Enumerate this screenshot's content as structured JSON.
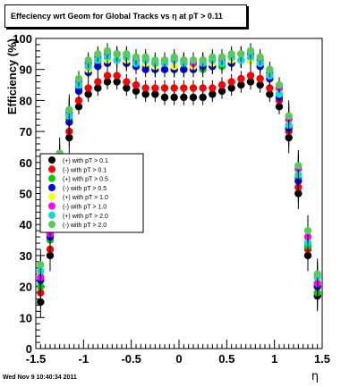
{
  "timestamp": "Wed Nov  9 10:40:34 2011",
  "chart_data": {
    "type": "scatter",
    "title": "Effeciency wrt Geom for Global Tracks vs   η at pT > 0.11",
    "xlabel": "η",
    "ylabel": "Efficiency (%)",
    "xlim": [
      -1.5,
      1.5
    ],
    "ylim": [
      0,
      100
    ],
    "x_ticks": [
      "-1.5",
      "-1",
      "-0.5",
      "0",
      "0.5",
      "1",
      "1.5"
    ],
    "y_ticks": [
      "0",
      "10",
      "20",
      "30",
      "40",
      "50",
      "60",
      "70",
      "80",
      "90",
      "100"
    ],
    "grid": false,
    "legend_position": "left-middle",
    "series": [
      {
        "name": "(+) with pT > 0.1",
        "color": "#000000",
        "x": [
          -1.45,
          -1.35,
          -1.25,
          -1.15,
          -1.05,
          -0.95,
          -0.85,
          -0.75,
          -0.65,
          -0.55,
          -0.45,
          -0.35,
          -0.25,
          -0.15,
          -0.05,
          0.05,
          0.15,
          0.25,
          0.35,
          0.45,
          0.55,
          0.65,
          0.75,
          0.85,
          0.95,
          1.05,
          1.15,
          1.25,
          1.35,
          1.45
        ],
        "y": [
          15,
          30,
          50,
          68,
          78,
          82,
          84,
          86,
          86,
          84,
          83,
          82,
          82,
          81,
          81,
          81,
          81,
          81,
          82,
          83,
          84,
          85,
          86,
          85,
          82,
          78,
          68,
          50,
          30,
          17
        ]
      },
      {
        "name": "(-) with pT > 0.1",
        "color": "#ff0000",
        "x": [
          -1.45,
          -1.35,
          -1.25,
          -1.15,
          -1.05,
          -0.95,
          -0.85,
          -0.75,
          -0.65,
          -0.55,
          -0.45,
          -0.35,
          -0.25,
          -0.15,
          -0.05,
          0.05,
          0.15,
          0.25,
          0.35,
          0.45,
          0.55,
          0.65,
          0.75,
          0.85,
          0.95,
          1.05,
          1.15,
          1.25,
          1.35,
          1.45
        ],
        "y": [
          18,
          32,
          52,
          70,
          80,
          84,
          86,
          88,
          88,
          86,
          85,
          84,
          84,
          84,
          84,
          84,
          84,
          84,
          84,
          85,
          86,
          87,
          88,
          87,
          84,
          80,
          70,
          52,
          32,
          20
        ]
      },
      {
        "name": "(+) with pT > 0.5",
        "color": "#00cc00",
        "x": [
          -1.45,
          -1.35,
          -1.25,
          -1.15,
          -1.05,
          -0.95,
          -0.85,
          -0.75,
          -0.65,
          -0.55,
          -0.45,
          -0.35,
          -0.25,
          -0.15,
          -0.05,
          0.05,
          0.15,
          0.25,
          0.35,
          0.45,
          0.55,
          0.65,
          0.75,
          0.85,
          0.95,
          1.05,
          1.15,
          1.25,
          1.35,
          1.45
        ],
        "y": [
          20,
          35,
          58,
          74,
          84,
          90,
          92,
          93,
          94,
          92,
          91,
          91,
          90,
          90,
          90,
          90,
          90,
          90,
          91,
          91,
          92,
          93,
          94,
          92,
          88,
          82,
          72,
          55,
          33,
          18
        ]
      },
      {
        "name": "(-) with pT > 0.5",
        "color": "#0000ff",
        "x": [
          -1.45,
          -1.35,
          -1.25,
          -1.15,
          -1.05,
          -0.95,
          -0.85,
          -0.75,
          -0.65,
          -0.55,
          -0.45,
          -0.35,
          -0.25,
          -0.15,
          -0.05,
          0.05,
          0.15,
          0.25,
          0.35,
          0.45,
          0.55,
          0.65,
          0.75,
          0.85,
          0.95,
          1.05,
          1.15,
          1.25,
          1.35,
          1.45
        ],
        "y": [
          22,
          36,
          57,
          73,
          83,
          89,
          91,
          92,
          93,
          92,
          91,
          90,
          90,
          90,
          90,
          90,
          90,
          91,
          91,
          92,
          92,
          93,
          93,
          91,
          87,
          81,
          71,
          54,
          34,
          20
        ]
      },
      {
        "name": "(+) with pT > 1.0",
        "color": "#ffff00",
        "x": [
          -1.45,
          -1.35,
          -1.25,
          -1.15,
          -1.05,
          -0.95,
          -0.85,
          -0.75,
          -0.65,
          -0.55,
          -0.45,
          -0.35,
          -0.25,
          -0.15,
          -0.05,
          0.05,
          0.15,
          0.25,
          0.35,
          0.45,
          0.55,
          0.65,
          0.75,
          0.85,
          0.95,
          1.05,
          1.15,
          1.25,
          1.35,
          1.45
        ],
        "y": [
          24,
          38,
          60,
          75,
          85,
          90,
          93,
          93,
          94,
          93,
          92,
          92,
          91,
          92,
          91,
          92,
          91,
          92,
          92,
          92,
          93,
          93,
          93,
          92,
          88,
          83,
          73,
          57,
          35,
          22
        ]
      },
      {
        "name": "(-) with pT > 1.0",
        "color": "#ff00ff",
        "x": [
          -1.45,
          -1.35,
          -1.25,
          -1.15,
          -1.05,
          -0.95,
          -0.85,
          -0.75,
          -0.65,
          -0.55,
          -0.45,
          -0.35,
          -0.25,
          -0.15,
          -0.05,
          0.05,
          0.15,
          0.25,
          0.35,
          0.45,
          0.55,
          0.65,
          0.75,
          0.85,
          0.95,
          1.05,
          1.15,
          1.25,
          1.35,
          1.45
        ],
        "y": [
          23,
          37,
          59,
          76,
          86,
          92,
          94,
          95,
          95,
          94,
          93,
          93,
          92,
          93,
          93,
          93,
          92,
          93,
          93,
          93,
          94,
          95,
          95,
          93,
          89,
          84,
          74,
          58,
          36,
          21
        ]
      },
      {
        "name": "(+) with pT > 2.0",
        "color": "#00e0e0",
        "x": [
          -1.45,
          -1.35,
          -1.25,
          -1.15,
          -1.05,
          -0.95,
          -0.85,
          -0.75,
          -0.65,
          -0.55,
          -0.45,
          -0.35,
          -0.25,
          -0.15,
          -0.05,
          0.05,
          0.15,
          0.25,
          0.35,
          0.45,
          0.55,
          0.65,
          0.75,
          0.85,
          0.95,
          1.05,
          1.15,
          1.25,
          1.35,
          1.45
        ],
        "y": [
          25,
          40,
          61,
          75,
          85,
          91,
          93,
          94,
          93,
          94,
          92,
          93,
          92,
          92,
          93,
          92,
          93,
          92,
          93,
          92,
          94,
          93,
          94,
          92,
          88,
          82,
          72,
          56,
          34,
          23
        ]
      },
      {
        "name": "(-) with pT > 2.0",
        "color": "#55cc55",
        "x": [
          -1.45,
          -1.35,
          -1.25,
          -1.15,
          -1.05,
          -0.95,
          -0.85,
          -0.75,
          -0.65,
          -0.55,
          -0.45,
          -0.35,
          -0.25,
          -0.15,
          -0.05,
          0.05,
          0.15,
          0.25,
          0.35,
          0.45,
          0.55,
          0.65,
          0.75,
          0.85,
          0.95,
          1.05,
          1.15,
          1.25,
          1.35,
          1.45
        ],
        "y": [
          27,
          42,
          63,
          77,
          87,
          93,
          95,
          96,
          95,
          95,
          94,
          94,
          93,
          93,
          94,
          93,
          93,
          93,
          94,
          94,
          95,
          95,
          96,
          94,
          90,
          85,
          75,
          59,
          38,
          24
        ]
      }
    ]
  }
}
